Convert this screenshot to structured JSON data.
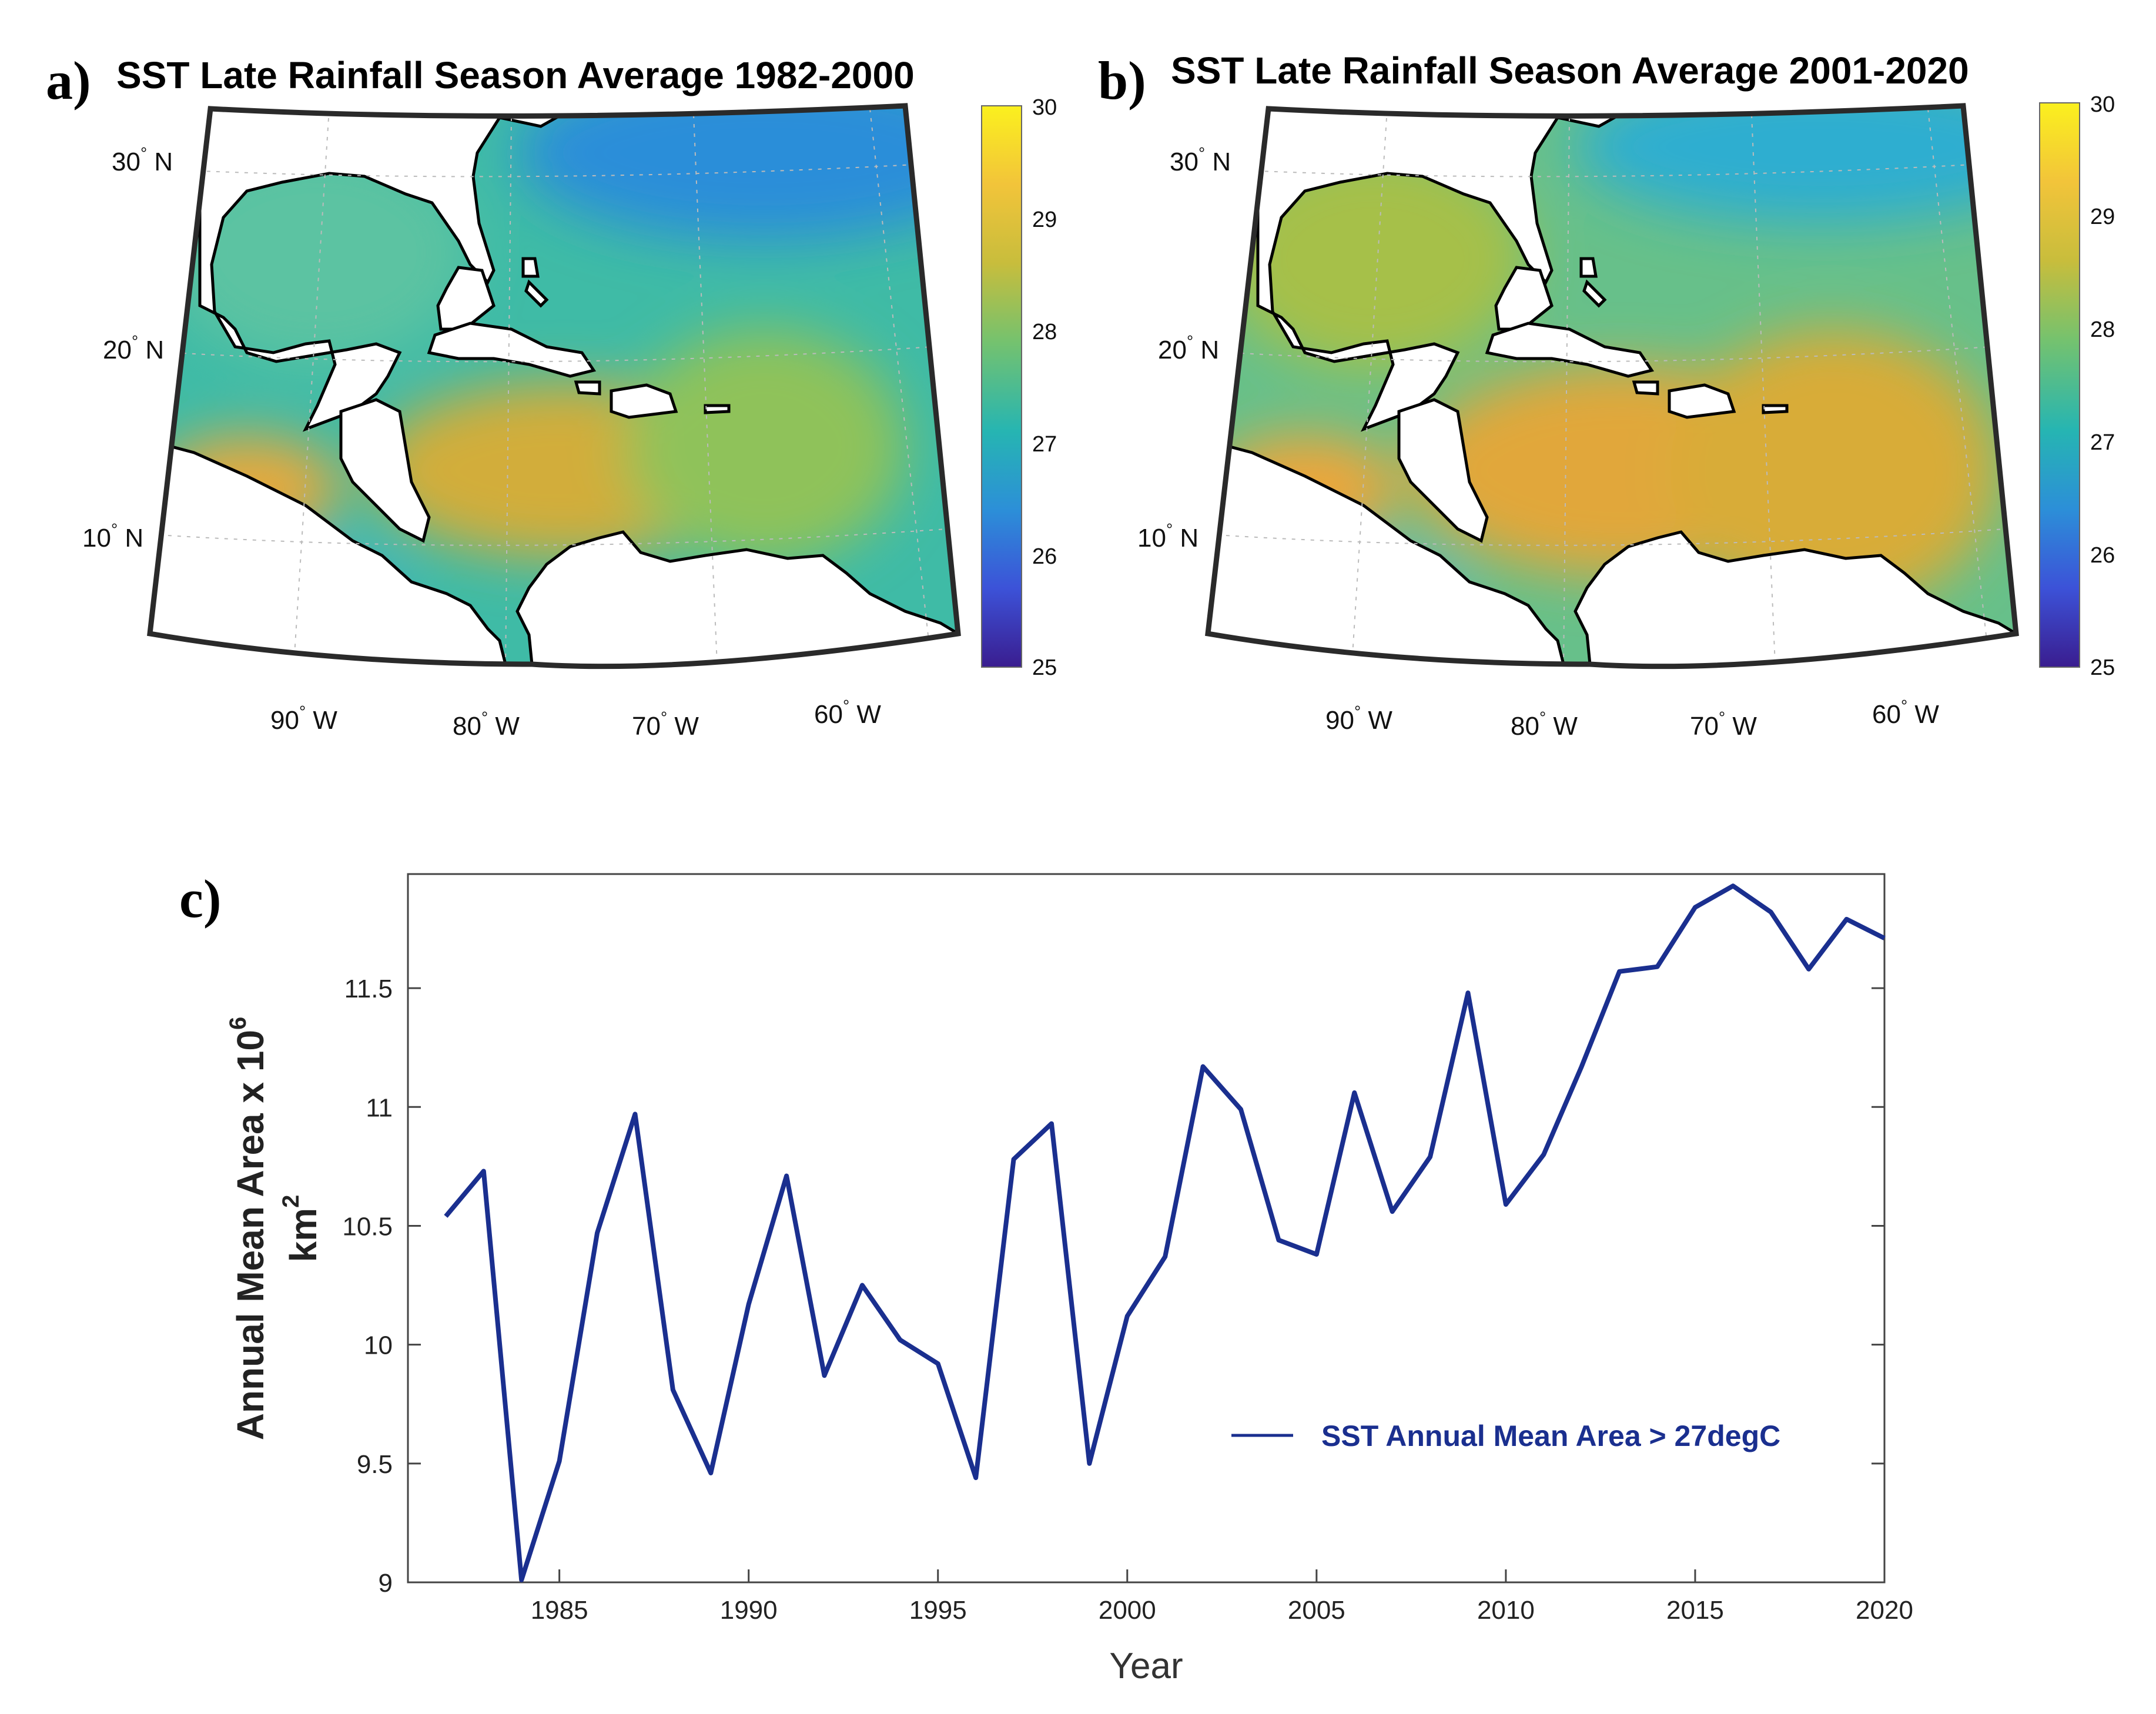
{
  "maps": [
    {
      "panel": "a)",
      "title": "SST Late Rainfall Season Average 1982-2000",
      "lat_labels": [
        "30",
        "20",
        "10"
      ],
      "lon_labels": [
        "90",
        "80",
        "70",
        "60"
      ],
      "lat_suffix": "N",
      "lon_suffix": "W",
      "colorbar": {
        "ticks": [
          "30",
          "29",
          "28",
          "27",
          "26",
          "25"
        ]
      },
      "sst_fill": {
        "gulf": "#5bc3a2",
        "caribbean": "#d2ad3a",
        "atlantic_south": "#8fc25a",
        "atlantic_mid": "#3fbba6",
        "atlantic_north": "#2a8ed9",
        "pacific_near": "#e5a93d",
        "pacific_far": "#2aa8d3"
      }
    },
    {
      "panel": "b)",
      "title": "SST Late Rainfall Season Average 2001-2020",
      "lat_labels": [
        "30",
        "20",
        "10"
      ],
      "lon_labels": [
        "90",
        "80",
        "70",
        "60"
      ],
      "lat_suffix": "N",
      "lon_suffix": "W",
      "colorbar": {
        "ticks": [
          "30",
          "29",
          "28",
          "27",
          "26",
          "25"
        ]
      },
      "sst_fill": {
        "gulf": "#a6c04a",
        "caribbean": "#e1a73a",
        "atlantic_south": "#d8ac39",
        "atlantic_mid": "#67c08a",
        "atlantic_north": "#2faed0",
        "pacific_near": "#eda63a",
        "pacific_far": "#34b1cf"
      }
    }
  ],
  "colorbar_scale": [
    "#fbf01e",
    "#f2c43a",
    "#c8bd3c",
    "#75c26e",
    "#26b5b2",
    "#2c8fd8",
    "#3c52d8",
    "#3a1d8f"
  ],
  "line_panel": {
    "panel": "c)"
  },
  "chart_data": {
    "type": "line",
    "title": "",
    "xlabel": "Year",
    "ylabel": "Annual Mean Area x 10",
    "ylabel_power": "6",
    "ylabel_line2": "km",
    "ylabel_line2_power": "2",
    "xlim": [
      1981,
      2020
    ],
    "ylim": [
      9,
      11.98
    ],
    "x_ticks": [
      1985,
      1990,
      1995,
      2000,
      2005,
      2010,
      2015,
      2020
    ],
    "y_ticks": [
      9,
      9.5,
      10,
      10.5,
      11,
      11.5
    ],
    "y_tick_labels": [
      "9",
      "9.5",
      "10",
      "10.5",
      "11",
      "11.5"
    ],
    "grid": false,
    "legend_position": "lower-right",
    "series": [
      {
        "name": "SST Annual Mean Area > 27degC",
        "color": "#1a2f8f",
        "x": [
          1982,
          1983,
          1984,
          1985,
          1986,
          1987,
          1988,
          1989,
          1990,
          1991,
          1992,
          1993,
          1994,
          1995,
          1996,
          1997,
          1998,
          1999,
          2000,
          2001,
          2002,
          2003,
          2004,
          2005,
          2006,
          2007,
          2008,
          2009,
          2010,
          2011,
          2012,
          2013,
          2014,
          2015,
          2016,
          2017,
          2018,
          2019,
          2020
        ],
        "values": [
          10.54,
          10.73,
          9.01,
          9.51,
          10.47,
          10.97,
          9.81,
          9.46,
          10.17,
          10.71,
          9.87,
          10.25,
          10.02,
          9.92,
          9.44,
          10.78,
          10.93,
          9.5,
          10.12,
          10.37,
          11.17,
          10.99,
          10.44,
          10.38,
          11.06,
          10.56,
          10.79,
          11.48,
          10.59,
          10.8,
          11.17,
          11.57,
          11.59,
          11.84,
          11.93,
          11.82,
          11.58,
          11.79,
          11.71
        ]
      }
    ]
  }
}
